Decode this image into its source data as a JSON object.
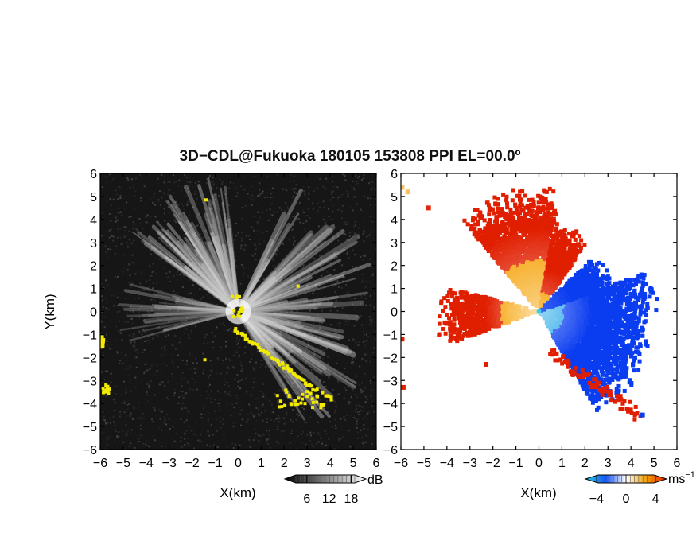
{
  "title": "3D−CDL@Fukuoka 180105 153808 PPI EL=00.0º",
  "colors": {
    "echo_low": "#111111",
    "echo_high": "#ffffff",
    "highlight": "#f2ea00",
    "vel_neg_strong": "#0a3cf0",
    "vel_neg_weak": "#2aa9e8",
    "vel_zero": "#ffffff",
    "vel_pos_weak": "#f5a000",
    "vel_pos_strong": "#e01e00"
  },
  "chart_data": [
    {
      "type": "heatmap",
      "name": "snr",
      "xlabel": "X(km)",
      "ylabel": "Y(km)",
      "xlim": [
        -6,
        6
      ],
      "ylim": [
        -6,
        6
      ],
      "ticks": [
        -6,
        -5,
        -4,
        -3,
        -2,
        -1,
        0,
        1,
        2,
        3,
        4,
        5,
        6
      ],
      "colorbar": {
        "unit": "dB",
        "ticks": [
          6,
          12,
          18
        ],
        "range": [
          0,
          22
        ],
        "palette": "grayscale"
      }
    },
    {
      "type": "heatmap",
      "name": "velocity",
      "xlabel": "X(km)",
      "ylabel": "",
      "xlim": [
        -6,
        6
      ],
      "ylim": [
        -6,
        6
      ],
      "ticks": [
        -6,
        -5,
        -4,
        -3,
        -2,
        -1,
        0,
        1,
        2,
        3,
        4,
        5,
        6
      ],
      "colorbar": {
        "unit": "ms",
        "unit_exp": "−1",
        "ticks": [
          -4,
          0,
          4
        ],
        "range": [
          -5.5,
          5.5
        ],
        "palette": "blue-white-red"
      }
    }
  ]
}
